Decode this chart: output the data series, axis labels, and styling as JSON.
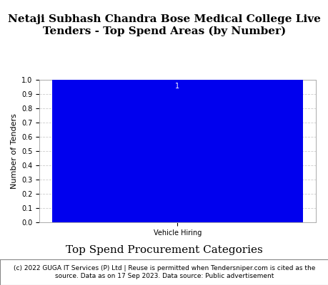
{
  "title": "Netaji Subhash Chandra Bose Medical College Live\nTenders - Top Spend Areas (by Number)",
  "categories": [
    "Vehicle Hiring"
  ],
  "values": [
    1
  ],
  "bar_color": "#0000EE",
  "ylabel": "Number of Tenders",
  "xlabel": "Top Spend Procurement Categories",
  "ylim": [
    0,
    1.0
  ],
  "yticks": [
    0.0,
    0.1,
    0.2,
    0.3,
    0.4,
    0.5,
    0.6,
    0.7,
    0.8,
    0.9,
    1.0
  ],
  "bar_label_fontsize": 7,
  "title_fontsize": 11,
  "xlabel_fontsize": 11,
  "ylabel_fontsize": 8,
  "tick_fontsize": 7,
  "footer_text": "(c) 2022 GUGA IT Services (P) Ltd | Reuse is permitted when Tendersniper.com is cited as the\nsource. Data as on 17 Sep 2023. Data source: Public advertisement",
  "footer_fontsize": 6.5,
  "grid_color": "#cccccc",
  "background_color": "#ffffff",
  "plot_bg_color": "#ffffff"
}
